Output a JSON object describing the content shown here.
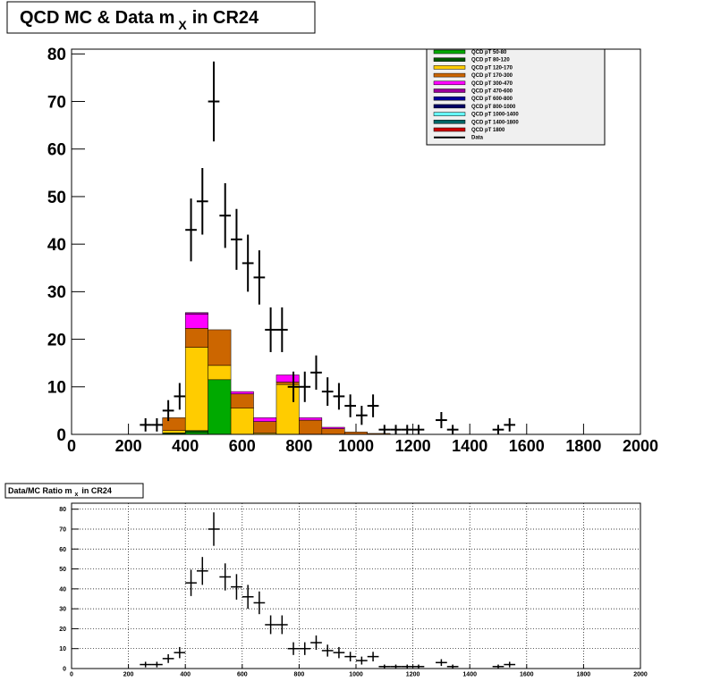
{
  "chart_data": [
    {
      "type": "stacked_histogram",
      "title": {
        "text": "QCD MC & Data m",
        "sub": "X",
        "rest": "in CR24"
      },
      "bins": [
        0,
        80,
        160,
        240,
        320,
        400,
        480,
        560,
        640,
        720,
        800,
        880,
        960,
        1040,
        1120,
        1200,
        1280,
        1360,
        1440,
        1520,
        1600,
        1680,
        1760,
        1840,
        1920,
        2000
      ],
      "series": [
        {
          "name": "QCD pT 50-80",
          "color": "#00aa00",
          "values": [
            0,
            0,
            0,
            0,
            0,
            0.5,
            11.5,
            0,
            0,
            0,
            0,
            0,
            0,
            0,
            0,
            0,
            0,
            0,
            0,
            0,
            0,
            0,
            0,
            0,
            0
          ]
        },
        {
          "name": "QCD pT 80-120",
          "color": "#005500",
          "values": [
            0,
            0,
            0,
            0,
            0.3,
            0.3,
            0,
            0,
            0,
            0,
            0,
            0,
            0,
            0,
            0,
            0,
            0,
            0,
            0,
            0,
            0,
            0,
            0,
            0,
            0
          ]
        },
        {
          "name": "QCD pT 120-170",
          "color": "#ffcc00",
          "values": [
            0,
            0,
            0,
            0,
            0.5,
            17.5,
            3,
            5.5,
            0.3,
            10.5,
            0,
            0,
            0,
            0,
            0,
            0,
            0,
            0,
            0,
            0,
            0,
            0,
            0,
            0,
            0
          ]
        },
        {
          "name": "QCD pT 170-300",
          "color": "#cc6600",
          "values": [
            0,
            0,
            0,
            0,
            2.7,
            4,
            7.5,
            3,
            2.4,
            0.5,
            3,
            1.2,
            0.5,
            0.2,
            0,
            0,
            0,
            0,
            0,
            0,
            0,
            0,
            0,
            0,
            0
          ]
        },
        {
          "name": "QCD pT 300-470",
          "color": "#ff00ff",
          "values": [
            0,
            0,
            0,
            0,
            0,
            3,
            0,
            0.5,
            0.8,
            1.5,
            0.5,
            0.3,
            0,
            0,
            0,
            0,
            0,
            0,
            0,
            0,
            0,
            0,
            0,
            0,
            0
          ]
        },
        {
          "name": "QCD pT 470-600",
          "color": "#990099",
          "values": [
            0,
            0,
            0,
            0,
            0,
            0.3,
            0,
            0,
            0,
            0,
            0,
            0,
            0,
            0,
            0,
            0,
            0,
            0,
            0,
            0,
            0,
            0,
            0,
            0,
            0
          ]
        },
        {
          "name": "QCD pT 600-800",
          "color": "#000099",
          "values": [
            0,
            0,
            0,
            0,
            0,
            0,
            0,
            0,
            0,
            0,
            0,
            0,
            0,
            0,
            0,
            0,
            0,
            0,
            0,
            0,
            0,
            0,
            0,
            0,
            0
          ]
        },
        {
          "name": "QCD pT 800-1000",
          "color": "#000066",
          "values": [
            0,
            0,
            0,
            0,
            0,
            0,
            0,
            0,
            0,
            0,
            0,
            0,
            0,
            0,
            0,
            0,
            0,
            0,
            0,
            0,
            0,
            0,
            0,
            0,
            0
          ]
        },
        {
          "name": "QCD pT 1000-1400",
          "color": "#66ffff",
          "values": [
            0,
            0,
            0,
            0,
            0,
            0,
            0,
            0,
            0,
            0,
            0,
            0,
            0,
            0,
            0,
            0,
            0,
            0,
            0,
            0,
            0,
            0,
            0,
            0,
            0
          ]
        },
        {
          "name": "QCD pT 1400-1800",
          "color": "#006666",
          "values": [
            0,
            0,
            0,
            0,
            0,
            0,
            0,
            0,
            0,
            0,
            0,
            0,
            0,
            0,
            0,
            0,
            0,
            0,
            0,
            0,
            0,
            0,
            0,
            0,
            0
          ]
        },
        {
          "name": "QCD pT 1800",
          "color": "#cc0000",
          "values": [
            0,
            0,
            0,
            0,
            0,
            0,
            0,
            0,
            0,
            0,
            0,
            0,
            0,
            0,
            0,
            0,
            0,
            0,
            0,
            0,
            0,
            0,
            0,
            0,
            0
          ]
        }
      ],
      "data": {
        "name": "Data",
        "color": "#000000",
        "xerr": 20,
        "x": [
          260,
          300,
          340,
          380,
          420,
          460,
          500,
          540,
          580,
          620,
          660,
          700,
          740,
          780,
          820,
          860,
          900,
          940,
          980,
          1020,
          1060,
          1100,
          1140,
          1180,
          1220,
          1300,
          1340,
          1500,
          1540
        ],
        "values": [
          2,
          2,
          5,
          8,
          43,
          49,
          70,
          46,
          41,
          36,
          33,
          22,
          22,
          10,
          10,
          13,
          9,
          8,
          6,
          4,
          6,
          1,
          1,
          1,
          1,
          3,
          1,
          1,
          2
        ],
        "errors": [
          1.4,
          1.4,
          2.2,
          2.8,
          6.6,
          7,
          8.4,
          6.8,
          6.4,
          6,
          5.7,
          4.7,
          4.7,
          3.2,
          3.2,
          3.6,
          3,
          2.8,
          2.4,
          2,
          2.4,
          1,
          1,
          1,
          1,
          1.7,
          1,
          1,
          1.4
        ]
      },
      "xlim": [
        0,
        2000
      ],
      "xticks": [
        0,
        200,
        400,
        600,
        800,
        1000,
        1200,
        1400,
        1600,
        1800,
        2000
      ],
      "ylim": [
        0,
        81
      ],
      "yticks": [
        0,
        10,
        20,
        30,
        40,
        50,
        60,
        70,
        80
      ],
      "grid": false
    },
    {
      "type": "errorbar",
      "title": {
        "text": "Data/MC Ratio m",
        "sub": "x",
        "rest": "in CR24"
      },
      "xerr": 20,
      "color": "#000000",
      "x": [
        260,
        300,
        340,
        380,
        420,
        460,
        500,
        540,
        580,
        620,
        660,
        700,
        740,
        780,
        820,
        860,
        900,
        940,
        980,
        1020,
        1060,
        1100,
        1140,
        1180,
        1220,
        1300,
        1340,
        1500,
        1540
      ],
      "values": [
        2,
        2,
        5,
        8,
        43,
        49,
        70,
        46,
        41,
        36,
        33,
        22,
        22,
        10,
        10,
        13,
        9,
        8,
        6,
        4,
        6,
        1,
        1,
        1,
        1,
        3,
        1,
        1,
        2
      ],
      "errors": [
        1.4,
        1.4,
        2.2,
        2.8,
        6.6,
        7,
        8.4,
        6.8,
        6.4,
        6,
        5.7,
        4.7,
        4.7,
        3.2,
        3.2,
        3.6,
        3,
        2.8,
        2.4,
        2,
        2.4,
        1,
        1,
        1,
        1,
        1.7,
        1,
        1,
        1.4
      ],
      "xlim": [
        0,
        2000
      ],
      "xticks": [
        0,
        200,
        400,
        600,
        800,
        1000,
        1200,
        1400,
        1600,
        1800,
        2000
      ],
      "ylim": [
        0,
        83
      ],
      "yticks": [
        0,
        10,
        20,
        30,
        40,
        50,
        60,
        70,
        80
      ],
      "grid": true
    }
  ]
}
